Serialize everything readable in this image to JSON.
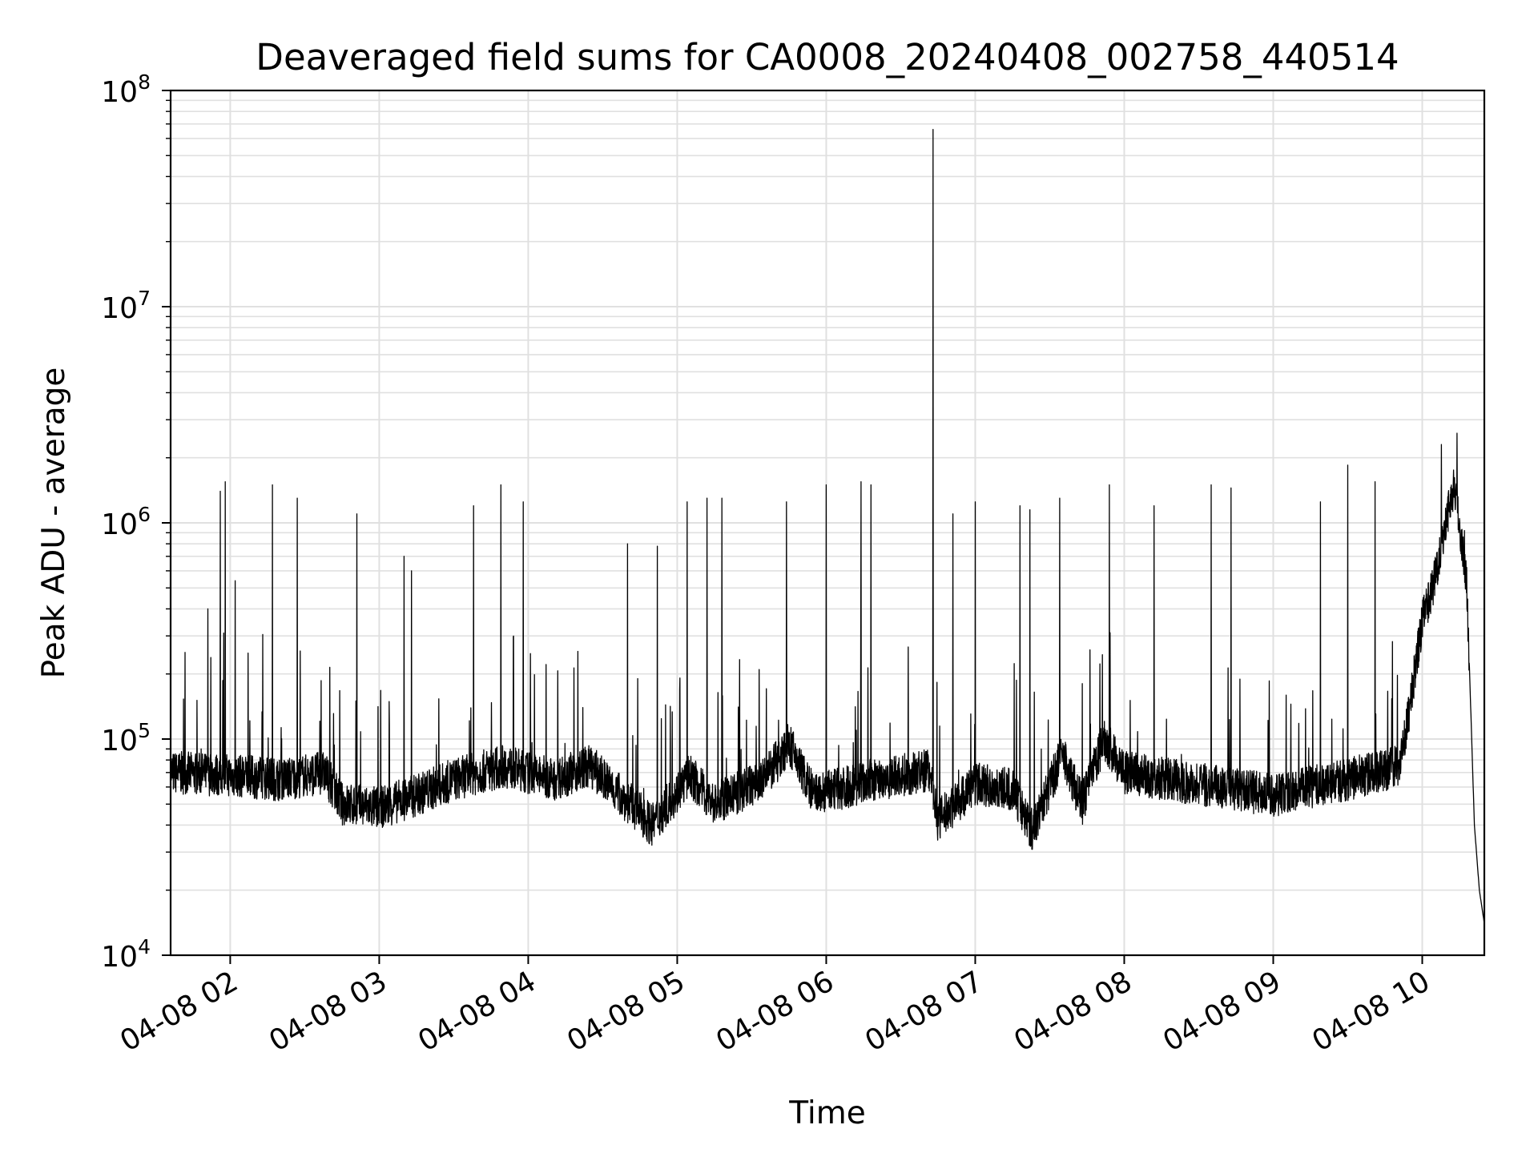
{
  "chart_data": {
    "type": "line",
    "title": "Deaveraged field sums for CA0008_20240408_002758_440514",
    "xlabel": "Time",
    "ylabel": "Peak ADU - average",
    "yscale": "log",
    "ylim": [
      10000,
      100000000
    ],
    "xlim": [
      "2024-04-08 01:36",
      "2024-04-08 10:25"
    ],
    "grid": true,
    "line_color": "#000000",
    "grid_color": "#e0e0e0",
    "x_ticks": [
      {
        "value": "2024-04-08 02:00",
        "label": "04-08 02"
      },
      {
        "value": "2024-04-08 03:00",
        "label": "04-08 03"
      },
      {
        "value": "2024-04-08 04:00",
        "label": "04-08 04"
      },
      {
        "value": "2024-04-08 05:00",
        "label": "04-08 05"
      },
      {
        "value": "2024-04-08 06:00",
        "label": "04-08 06"
      },
      {
        "value": "2024-04-08 07:00",
        "label": "04-08 07"
      },
      {
        "value": "2024-04-08 08:00",
        "label": "04-08 08"
      },
      {
        "value": "2024-04-08 09:00",
        "label": "04-08 09"
      },
      {
        "value": "2024-04-08 10:00",
        "label": "04-08 10"
      }
    ],
    "y_ticks": [
      {
        "value": 10000,
        "base": "10",
        "exp": "4"
      },
      {
        "value": 100000,
        "base": "10",
        "exp": "5"
      },
      {
        "value": 1000000,
        "base": "10",
        "exp": "6"
      },
      {
        "value": 10000000,
        "base": "10",
        "exp": "7"
      },
      {
        "value": 100000000,
        "base": "10",
        "exp": "8"
      }
    ],
    "series": [
      {
        "baseline": [
          [
            "2024-04-08 01:36",
            70000
          ],
          [
            "2024-04-08 02:00",
            68000
          ],
          [
            "2024-04-08 02:20",
            65000
          ],
          [
            "2024-04-08 02:38",
            70000
          ],
          [
            "2024-04-08 02:45",
            50000
          ],
          [
            "2024-04-08 03:00",
            48000
          ],
          [
            "2024-04-08 03:15",
            55000
          ],
          [
            "2024-04-08 03:30",
            65000
          ],
          [
            "2024-04-08 03:50",
            75000
          ],
          [
            "2024-04-08 04:10",
            65000
          ],
          [
            "2024-04-08 04:25",
            75000
          ],
          [
            "2024-04-08 04:35",
            58000
          ],
          [
            "2024-04-08 04:50",
            40000
          ],
          [
            "2024-04-08 05:05",
            68000
          ],
          [
            "2024-04-08 05:15",
            50000
          ],
          [
            "2024-04-08 05:35",
            65000
          ],
          [
            "2024-04-08 05:45",
            95000
          ],
          [
            "2024-04-08 05:55",
            55000
          ],
          [
            "2024-04-08 06:20",
            65000
          ],
          [
            "2024-04-08 06:42",
            72000
          ],
          [
            "2024-04-08 06:45",
            42000
          ],
          [
            "2024-04-08 07:00",
            62000
          ],
          [
            "2024-04-08 07:15",
            58000
          ],
          [
            "2024-04-08 07:23",
            38000
          ],
          [
            "2024-04-08 07:35",
            85000
          ],
          [
            "2024-04-08 07:43",
            50000
          ],
          [
            "2024-04-08 07:52",
            100000
          ],
          [
            "2024-04-08 08:00",
            70000
          ],
          [
            "2024-04-08 08:30",
            62000
          ],
          [
            "2024-04-08 09:00",
            55000
          ],
          [
            "2024-04-08 09:30",
            65000
          ],
          [
            "2024-04-08 09:50",
            75000
          ],
          [
            "2024-04-08 09:53",
            100000
          ],
          [
            "2024-04-08 10:00",
            350000
          ],
          [
            "2024-04-08 10:05",
            550000
          ],
          [
            "2024-04-08 10:10",
            1100000
          ],
          [
            "2024-04-08 10:13",
            1500000
          ],
          [
            "2024-04-08 10:15",
            1000000
          ],
          [
            "2024-04-08 10:18",
            500000
          ],
          [
            "2024-04-08 10:21",
            40000
          ],
          [
            "2024-04-08 10:23",
            20000
          ],
          [
            "2024-04-08 10:25",
            14000
          ]
        ],
        "spikes": [
          [
            "2024-04-08 01:51",
            400000
          ],
          [
            "2024-04-08 01:56",
            1400000
          ],
          [
            "2024-04-08 01:58",
            1550000
          ],
          [
            "2024-04-08 02:02",
            540000
          ],
          [
            "2024-04-08 02:17",
            1500000
          ],
          [
            "2024-04-08 02:27",
            1300000
          ],
          [
            "2024-04-08 02:51",
            1100000
          ],
          [
            "2024-04-08 03:10",
            700000
          ],
          [
            "2024-04-08 03:13",
            600000
          ],
          [
            "2024-04-08 03:38",
            1200000
          ],
          [
            "2024-04-08 03:49",
            1500000
          ],
          [
            "2024-04-08 03:58",
            1250000
          ],
          [
            "2024-04-08 04:40",
            800000
          ],
          [
            "2024-04-08 04:52",
            780000
          ],
          [
            "2024-04-08 05:04",
            1250000
          ],
          [
            "2024-04-08 05:12",
            1300000
          ],
          [
            "2024-04-08 05:18",
            1300000
          ],
          [
            "2024-04-08 05:44",
            1250000
          ],
          [
            "2024-04-08 06:00",
            1500000
          ],
          [
            "2024-04-08 06:14",
            1550000
          ],
          [
            "2024-04-08 06:18",
            1500000
          ],
          [
            "2024-04-08 06:43",
            66000000
          ],
          [
            "2024-04-08 06:51",
            1100000
          ],
          [
            "2024-04-08 07:00",
            1250000
          ],
          [
            "2024-04-08 07:18",
            1200000
          ],
          [
            "2024-04-08 07:22",
            1150000
          ],
          [
            "2024-04-08 07:34",
            1300000
          ],
          [
            "2024-04-08 07:54",
            1500000
          ],
          [
            "2024-04-08 08:12",
            1200000
          ],
          [
            "2024-04-08 08:35",
            1500000
          ],
          [
            "2024-04-08 08:43",
            1450000
          ],
          [
            "2024-04-08 09:19",
            1250000
          ],
          [
            "2024-04-08 09:30",
            1850000
          ],
          [
            "2024-04-08 09:41",
            1550000
          ],
          [
            "2024-04-08 10:14",
            2600000
          ]
        ]
      }
    ]
  }
}
